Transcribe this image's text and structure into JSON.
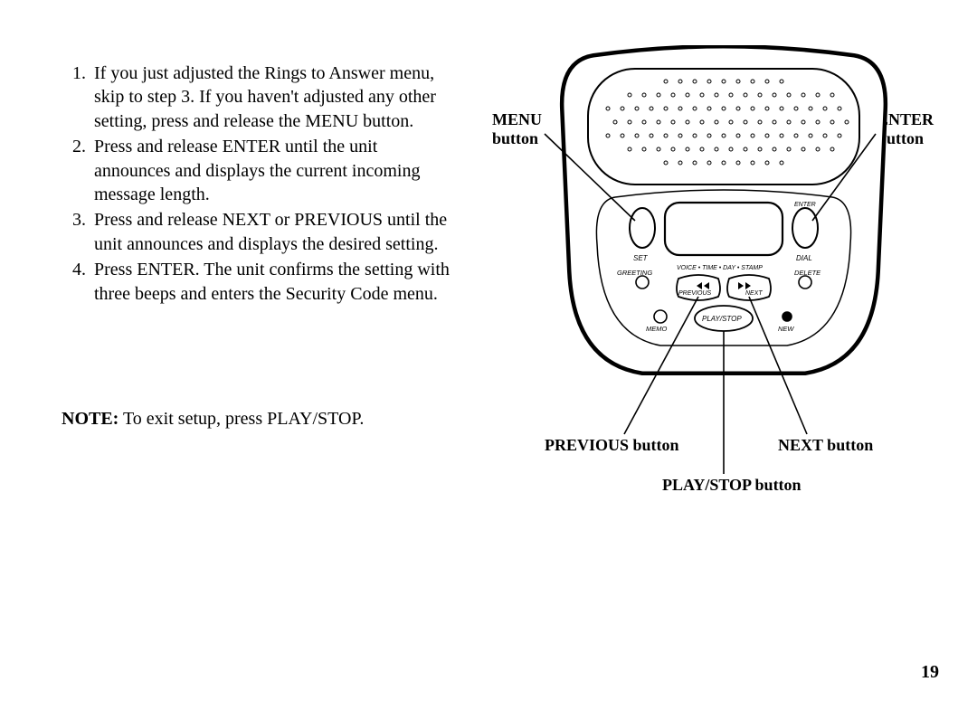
{
  "page_number": "19",
  "instructions": {
    "items": [
      "If you just adjusted the Rings to Answer menu, skip to step 3. If you haven't adjusted any other setting, press and release the MENU button.",
      "Press and release ENTER until the unit announces and displays the current incoming message length.",
      "Press and release NEXT or PREVIOUS until the unit announces and displays the desired setting.",
      "Press ENTER. The unit confirms the setting with three beeps and enters the Security Code menu."
    ]
  },
  "note": {
    "label": "NOTE:",
    "text": " To exit setup, press PLAY/STOP."
  },
  "diagram": {
    "callouts": {
      "menu": {
        "line1": "MENU",
        "line2": "button"
      },
      "enter": {
        "line1": "ENTER",
        "line2": "button"
      },
      "previous": "PREVIOUS button",
      "next": "NEXT button",
      "playstop": "PLAY/STOP button"
    },
    "button_labels": {
      "enter_small": "ENTER",
      "set": "SET",
      "dial": "DIAL",
      "greeting": "GREETING",
      "delete": "DELETE",
      "previous": "PREVIOUS",
      "next": "NEXT",
      "memo": "MEMO",
      "new": "NEW",
      "playstop": "PLAY/STOP",
      "voice_stamp": "VOICE • TIME • DAY • STAMP"
    },
    "style": {
      "stroke": "#000000",
      "fill_bg": "#ffffff",
      "speaker_hole_r": 2,
      "stroke_w_body": 3,
      "stroke_w_thin": 1.5,
      "callout_line_w": 1.6
    }
  }
}
